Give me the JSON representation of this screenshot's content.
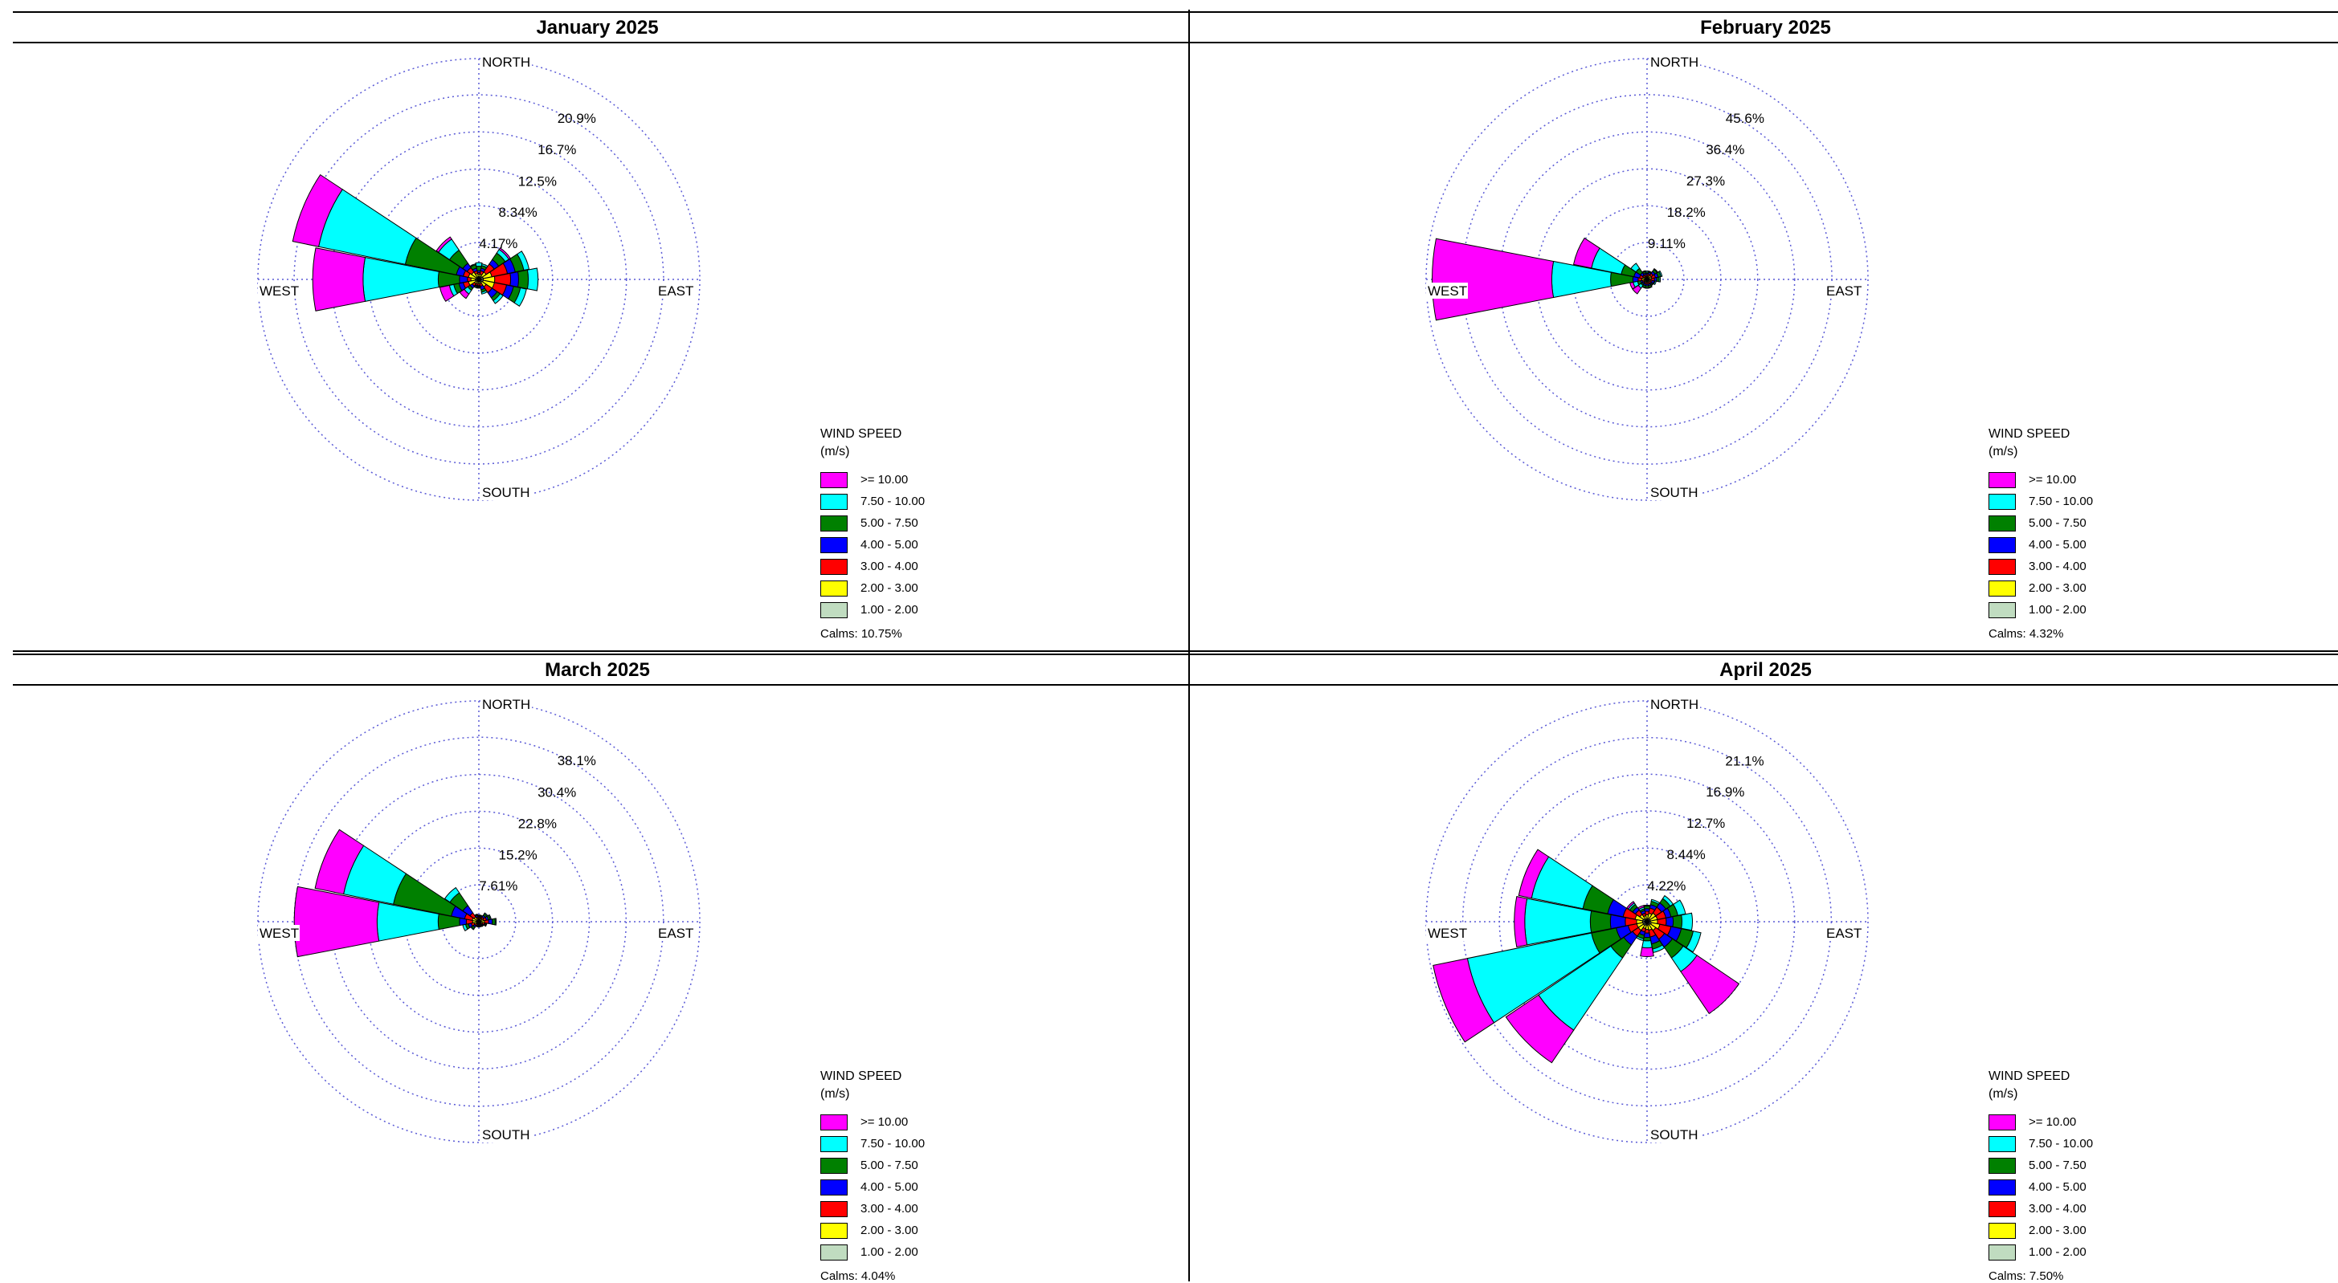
{
  "legend": {
    "title_line1": "WIND SPEED",
    "title_line2": "(m/s)",
    "bins": [
      {
        "label": ">= 10.00",
        "color": "#ff00ff"
      },
      {
        "label": "7.50 - 10.00",
        "color": "#00ffff"
      },
      {
        "label": "5.00 - 7.50",
        "color": "#008000"
      },
      {
        "label": "4.00 - 5.00",
        "color": "#0000ff"
      },
      {
        "label": "3.00 - 4.00",
        "color": "#ff0000"
      },
      {
        "label": "2.00 - 3.00",
        "color": "#ffff00"
      },
      {
        "label": "1.00 - 2.00",
        "color": "#c0dcc0"
      }
    ]
  },
  "compass": {
    "north": "NORTH",
    "south": "SOUTH",
    "east": "EAST",
    "west": "WEST"
  },
  "chart_data": [
    {
      "type": "windrose",
      "title": "January 2025",
      "calms": "Calms:  10.75%",
      "rmax": 25.0,
      "ring_labels": [
        "4.17%",
        "8.34%",
        "12.5%",
        "16.7%",
        "20.9%"
      ],
      "ring_values": [
        4.17,
        8.34,
        12.5,
        16.7,
        20.9,
        25.0
      ],
      "directions": [
        0,
        22.5,
        45,
        67.5,
        90,
        112.5,
        135,
        157.5,
        180,
        202.5,
        225,
        247.5,
        270,
        292.5,
        315,
        337.5
      ],
      "cumulative": [
        [
          0.3,
          0.6,
          0.8,
          1.0,
          1.5,
          1.9,
          1.9
        ],
        [
          0.3,
          0.6,
          1.0,
          1.3,
          1.6,
          1.8,
          1.8
        ],
        [
          0.4,
          1.0,
          2.1,
          2.7,
          3.6,
          4.1,
          4.3
        ],
        [
          0.5,
          1.5,
          3.3,
          4.2,
          5.2,
          5.8,
          5.8
        ],
        [
          0.5,
          1.8,
          3.6,
          4.5,
          5.6,
          6.7,
          6.7
        ],
        [
          0.5,
          1.8,
          3.2,
          4.0,
          4.8,
          5.5,
          5.5
        ],
        [
          0.4,
          1.0,
          1.8,
          2.5,
          2.9,
          3.3,
          3.3
        ],
        [
          0.3,
          0.5,
          0.8,
          1.2,
          1.5,
          1.7,
          1.7
        ],
        [
          0.3,
          0.5,
          0.7,
          0.8,
          0.9,
          1.0,
          1.0
        ],
        [
          0.3,
          0.5,
          0.7,
          0.8,
          0.9,
          1.0,
          1.0
        ],
        [
          0.3,
          0.6,
          0.9,
          1.2,
          1.5,
          2.0,
          2.6
        ],
        [
          0.4,
          1.2,
          1.8,
          2.3,
          2.9,
          3.4,
          4.5
        ],
        [
          0.4,
          0.9,
          1.3,
          2.2,
          4.6,
          13.1,
          18.8
        ],
        [
          0.3,
          1.2,
          1.8,
          2.6,
          8.5,
          18.5,
          21.5
        ],
        [
          0.3,
          1.0,
          1.6,
          2.2,
          4.0,
          5.5,
          5.8
        ],
        [
          0.3,
          0.7,
          1.0,
          1.3,
          1.7,
          1.8,
          1.8
        ]
      ]
    },
    {
      "type": "windrose",
      "title": "February 2025",
      "calms": "Calms:  4.32%",
      "rmax": 54.5,
      "ring_labels": [
        "9.11%",
        "18.2%",
        "27.3%",
        "36.4%",
        "45.6%"
      ],
      "ring_values": [
        9.11,
        18.2,
        27.3,
        36.4,
        45.6,
        54.5
      ],
      "directions": [
        0,
        22.5,
        45,
        67.5,
        90,
        112.5,
        135,
        157.5,
        180,
        202.5,
        225,
        247.5,
        270,
        292.5,
        315,
        337.5
      ],
      "cumulative": [
        [
          0.4,
          0.8,
          1.2,
          1.5,
          1.8,
          2.1,
          2.1
        ],
        [
          0.4,
          0.9,
          1.4,
          1.8,
          2.0,
          2.1,
          2.1
        ],
        [
          0.5,
          1.2,
          1.8,
          2.4,
          3.0,
          3.2,
          3.2
        ],
        [
          0.5,
          1.2,
          2.1,
          2.8,
          3.5,
          3.8,
          3.8
        ],
        [
          0.5,
          1.0,
          1.8,
          2.4,
          3.0,
          3.3,
          3.3
        ],
        [
          0.5,
          0.9,
          1.3,
          1.8,
          2.0,
          2.3,
          2.3
        ],
        [
          0.4,
          0.8,
          1.2,
          1.5,
          1.8,
          1.9,
          1.9
        ],
        [
          0.4,
          0.8,
          1.2,
          1.6,
          2.1,
          2.2,
          2.2
        ],
        [
          0.4,
          0.8,
          1.2,
          1.6,
          2.1,
          2.2,
          2.2
        ],
        [
          0.4,
          0.8,
          1.2,
          1.6,
          2.1,
          2.2,
          2.2
        ],
        [
          0.4,
          0.8,
          1.0,
          1.4,
          1.8,
          2.6,
          4.3
        ],
        [
          0.4,
          0.8,
          1.2,
          1.6,
          2.4,
          3.5,
          4.3
        ],
        [
          0.6,
          1.3,
          2.2,
          3.5,
          9.0,
          23.5,
          53.0
        ],
        [
          0.5,
          1.1,
          1.9,
          3.3,
          6.5,
          14.0,
          18.5
        ],
        [
          0.5,
          0.8,
          1.3,
          2.0,
          3.3,
          4.8,
          4.8
        ],
        [
          0.4,
          0.8,
          1.2,
          1.6,
          2.0,
          2.2,
          2.2
        ]
      ]
    },
    {
      "type": "windrose",
      "title": "March 2025",
      "calms": "Calms:  4.04%",
      "rmax": 45.6,
      "ring_labels": [
        "7.61%",
        "15.2%",
        "22.8%",
        "30.4%",
        "38.1%"
      ],
      "ring_values": [
        7.61,
        15.2,
        22.8,
        30.4,
        38.1,
        45.6
      ],
      "directions": [
        0,
        22.5,
        45,
        67.5,
        90,
        112.5,
        135,
        157.5,
        180,
        202.5,
        225,
        247.5,
        270,
        292.5,
        315,
        337.5
      ],
      "cumulative": [
        [
          0.3,
          0.6,
          0.9,
          1.1,
          1.3,
          1.4,
          1.4
        ],
        [
          0.3,
          0.6,
          0.9,
          1.1,
          1.3,
          1.4,
          1.4
        ],
        [
          0.3,
          0.8,
          1.2,
          1.6,
          2.0,
          2.2,
          2.2
        ],
        [
          0.4,
          1.0,
          1.6,
          2.0,
          2.4,
          2.6,
          2.6
        ],
        [
          0.4,
          1.2,
          2.0,
          2.8,
          3.4,
          3.6,
          3.6
        ],
        [
          0.3,
          0.8,
          1.2,
          1.4,
          1.6,
          1.7,
          1.7
        ],
        [
          0.3,
          0.6,
          0.8,
          1.0,
          1.1,
          1.2,
          1.2
        ],
        [
          0.3,
          0.5,
          0.7,
          0.9,
          1.0,
          1.1,
          1.1
        ],
        [
          0.3,
          0.5,
          0.7,
          0.9,
          1.0,
          1.1,
          1.1
        ],
        [
          0.3,
          0.5,
          0.7,
          0.9,
          1.0,
          1.1,
          1.1
        ],
        [
          0.3,
          0.6,
          1.0,
          1.4,
          1.8,
          2.0,
          2.0
        ],
        [
          0.4,
          1.0,
          1.6,
          2.2,
          2.8,
          3.4,
          3.4
        ],
        [
          0.5,
          1.3,
          2.6,
          4.0,
          8.4,
          21.0,
          38.1
        ],
        [
          0.5,
          1.4,
          3.0,
          5.8,
          18.0,
          28.5,
          34.5
        ],
        [
          0.4,
          1.2,
          2.2,
          4.0,
          7.2,
          8.5,
          8.5
        ],
        [
          0.3,
          0.7,
          1.0,
          1.3,
          1.5,
          1.6,
          1.6
        ]
      ]
    },
    {
      "type": "windrose",
      "title": "April 2025",
      "calms": "Calms:  7.50%",
      "rmax": 25.3,
      "ring_labels": [
        "4.22%",
        "8.44%",
        "12.7%",
        "16.9%",
        "21.1%"
      ],
      "ring_values": [
        4.22,
        8.44,
        12.7,
        16.9,
        21.1,
        25.3
      ],
      "directions": [
        0,
        22.5,
        45,
        67.5,
        90,
        112.5,
        135,
        157.5,
        180,
        202.5,
        225,
        247.5,
        270,
        292.5,
        315,
        337.5
      ],
      "cumulative": [
        [
          0.3,
          0.8,
          1.2,
          1.5,
          1.8,
          1.9,
          1.9
        ],
        [
          0.4,
          1.0,
          1.6,
          2.0,
          2.4,
          2.6,
          2.6
        ],
        [
          0.4,
          1.2,
          2.0,
          2.6,
          3.2,
          3.6,
          3.6
        ],
        [
          0.4,
          1.2,
          2.2,
          2.8,
          3.6,
          4.5,
          4.5
        ],
        [
          0.4,
          1.2,
          2.2,
          3.0,
          4.0,
          5.2,
          5.2
        ],
        [
          0.5,
          1.5,
          2.8,
          4.0,
          5.4,
          6.3,
          6.3
        ],
        [
          0.4,
          1.2,
          2.4,
          3.5,
          5.0,
          6.9,
          12.7
        ],
        [
          0.4,
          1.0,
          1.8,
          2.6,
          3.2,
          3.6,
          3.6
        ],
        [
          0.4,
          0.9,
          1.3,
          1.8,
          2.2,
          3.0,
          4.0
        ],
        [
          0.4,
          0.8,
          1.2,
          1.6,
          2.0,
          2.2,
          2.2
        ],
        [
          0.5,
          1.2,
          2.0,
          3.2,
          5.0,
          15.0,
          19.5
        ],
        [
          0.5,
          1.2,
          2.2,
          3.6,
          6.5,
          21.0,
          25.0
        ],
        [
          0.5,
          1.2,
          2.5,
          4.2,
          6.5,
          14.0,
          15.2
        ],
        [
          0.5,
          1.4,
          2.8,
          4.6,
          7.5,
          13.5,
          15.0
        ],
        [
          0.4,
          1.0,
          1.6,
          2.0,
          2.4,
          2.6,
          2.8
        ],
        [
          0.3,
          0.7,
          1.0,
          1.3,
          1.5,
          1.7,
          1.9
        ]
      ]
    }
  ]
}
